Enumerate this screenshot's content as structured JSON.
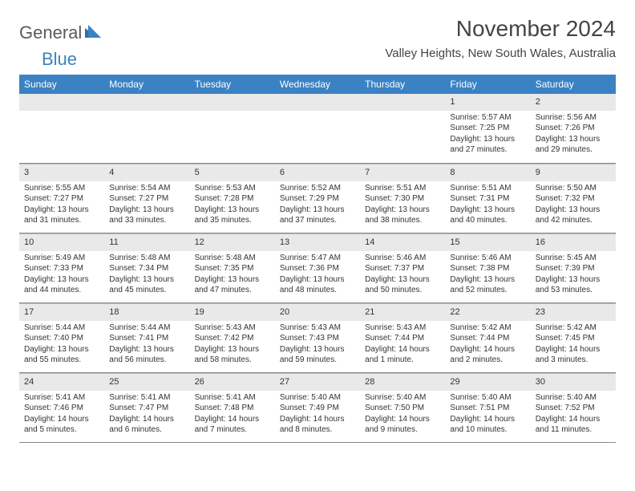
{
  "logo": {
    "part1": "General",
    "part2": "Blue"
  },
  "title": "November 2024",
  "location": "Valley Heights, New South Wales, Australia",
  "colors": {
    "header_bg": "#3b82c4",
    "daynum_bg": "#e9e9e9",
    "text": "#333333",
    "logo_gray": "#5a5a5a",
    "logo_blue": "#3b82c4"
  },
  "weekdays": [
    "Sunday",
    "Monday",
    "Tuesday",
    "Wednesday",
    "Thursday",
    "Friday",
    "Saturday"
  ],
  "weeks": [
    [
      {
        "n": "",
        "sr": "",
        "ss": "",
        "d1": "",
        "d2": ""
      },
      {
        "n": "",
        "sr": "",
        "ss": "",
        "d1": "",
        "d2": ""
      },
      {
        "n": "",
        "sr": "",
        "ss": "",
        "d1": "",
        "d2": ""
      },
      {
        "n": "",
        "sr": "",
        "ss": "",
        "d1": "",
        "d2": ""
      },
      {
        "n": "",
        "sr": "",
        "ss": "",
        "d1": "",
        "d2": ""
      },
      {
        "n": "1",
        "sr": "Sunrise: 5:57 AM",
        "ss": "Sunset: 7:25 PM",
        "d1": "Daylight: 13 hours",
        "d2": "and 27 minutes."
      },
      {
        "n": "2",
        "sr": "Sunrise: 5:56 AM",
        "ss": "Sunset: 7:26 PM",
        "d1": "Daylight: 13 hours",
        "d2": "and 29 minutes."
      }
    ],
    [
      {
        "n": "3",
        "sr": "Sunrise: 5:55 AM",
        "ss": "Sunset: 7:27 PM",
        "d1": "Daylight: 13 hours",
        "d2": "and 31 minutes."
      },
      {
        "n": "4",
        "sr": "Sunrise: 5:54 AM",
        "ss": "Sunset: 7:27 PM",
        "d1": "Daylight: 13 hours",
        "d2": "and 33 minutes."
      },
      {
        "n": "5",
        "sr": "Sunrise: 5:53 AM",
        "ss": "Sunset: 7:28 PM",
        "d1": "Daylight: 13 hours",
        "d2": "and 35 minutes."
      },
      {
        "n": "6",
        "sr": "Sunrise: 5:52 AM",
        "ss": "Sunset: 7:29 PM",
        "d1": "Daylight: 13 hours",
        "d2": "and 37 minutes."
      },
      {
        "n": "7",
        "sr": "Sunrise: 5:51 AM",
        "ss": "Sunset: 7:30 PM",
        "d1": "Daylight: 13 hours",
        "d2": "and 38 minutes."
      },
      {
        "n": "8",
        "sr": "Sunrise: 5:51 AM",
        "ss": "Sunset: 7:31 PM",
        "d1": "Daylight: 13 hours",
        "d2": "and 40 minutes."
      },
      {
        "n": "9",
        "sr": "Sunrise: 5:50 AM",
        "ss": "Sunset: 7:32 PM",
        "d1": "Daylight: 13 hours",
        "d2": "and 42 minutes."
      }
    ],
    [
      {
        "n": "10",
        "sr": "Sunrise: 5:49 AM",
        "ss": "Sunset: 7:33 PM",
        "d1": "Daylight: 13 hours",
        "d2": "and 44 minutes."
      },
      {
        "n": "11",
        "sr": "Sunrise: 5:48 AM",
        "ss": "Sunset: 7:34 PM",
        "d1": "Daylight: 13 hours",
        "d2": "and 45 minutes."
      },
      {
        "n": "12",
        "sr": "Sunrise: 5:48 AM",
        "ss": "Sunset: 7:35 PM",
        "d1": "Daylight: 13 hours",
        "d2": "and 47 minutes."
      },
      {
        "n": "13",
        "sr": "Sunrise: 5:47 AM",
        "ss": "Sunset: 7:36 PM",
        "d1": "Daylight: 13 hours",
        "d2": "and 48 minutes."
      },
      {
        "n": "14",
        "sr": "Sunrise: 5:46 AM",
        "ss": "Sunset: 7:37 PM",
        "d1": "Daylight: 13 hours",
        "d2": "and 50 minutes."
      },
      {
        "n": "15",
        "sr": "Sunrise: 5:46 AM",
        "ss": "Sunset: 7:38 PM",
        "d1": "Daylight: 13 hours",
        "d2": "and 52 minutes."
      },
      {
        "n": "16",
        "sr": "Sunrise: 5:45 AM",
        "ss": "Sunset: 7:39 PM",
        "d1": "Daylight: 13 hours",
        "d2": "and 53 minutes."
      }
    ],
    [
      {
        "n": "17",
        "sr": "Sunrise: 5:44 AM",
        "ss": "Sunset: 7:40 PM",
        "d1": "Daylight: 13 hours",
        "d2": "and 55 minutes."
      },
      {
        "n": "18",
        "sr": "Sunrise: 5:44 AM",
        "ss": "Sunset: 7:41 PM",
        "d1": "Daylight: 13 hours",
        "d2": "and 56 minutes."
      },
      {
        "n": "19",
        "sr": "Sunrise: 5:43 AM",
        "ss": "Sunset: 7:42 PM",
        "d1": "Daylight: 13 hours",
        "d2": "and 58 minutes."
      },
      {
        "n": "20",
        "sr": "Sunrise: 5:43 AM",
        "ss": "Sunset: 7:43 PM",
        "d1": "Daylight: 13 hours",
        "d2": "and 59 minutes."
      },
      {
        "n": "21",
        "sr": "Sunrise: 5:43 AM",
        "ss": "Sunset: 7:44 PM",
        "d1": "Daylight: 14 hours",
        "d2": "and 1 minute."
      },
      {
        "n": "22",
        "sr": "Sunrise: 5:42 AM",
        "ss": "Sunset: 7:44 PM",
        "d1": "Daylight: 14 hours",
        "d2": "and 2 minutes."
      },
      {
        "n": "23",
        "sr": "Sunrise: 5:42 AM",
        "ss": "Sunset: 7:45 PM",
        "d1": "Daylight: 14 hours",
        "d2": "and 3 minutes."
      }
    ],
    [
      {
        "n": "24",
        "sr": "Sunrise: 5:41 AM",
        "ss": "Sunset: 7:46 PM",
        "d1": "Daylight: 14 hours",
        "d2": "and 5 minutes."
      },
      {
        "n": "25",
        "sr": "Sunrise: 5:41 AM",
        "ss": "Sunset: 7:47 PM",
        "d1": "Daylight: 14 hours",
        "d2": "and 6 minutes."
      },
      {
        "n": "26",
        "sr": "Sunrise: 5:41 AM",
        "ss": "Sunset: 7:48 PM",
        "d1": "Daylight: 14 hours",
        "d2": "and 7 minutes."
      },
      {
        "n": "27",
        "sr": "Sunrise: 5:40 AM",
        "ss": "Sunset: 7:49 PM",
        "d1": "Daylight: 14 hours",
        "d2": "and 8 minutes."
      },
      {
        "n": "28",
        "sr": "Sunrise: 5:40 AM",
        "ss": "Sunset: 7:50 PM",
        "d1": "Daylight: 14 hours",
        "d2": "and 9 minutes."
      },
      {
        "n": "29",
        "sr": "Sunrise: 5:40 AM",
        "ss": "Sunset: 7:51 PM",
        "d1": "Daylight: 14 hours",
        "d2": "and 10 minutes."
      },
      {
        "n": "30",
        "sr": "Sunrise: 5:40 AM",
        "ss": "Sunset: 7:52 PM",
        "d1": "Daylight: 14 hours",
        "d2": "and 11 minutes."
      }
    ]
  ]
}
